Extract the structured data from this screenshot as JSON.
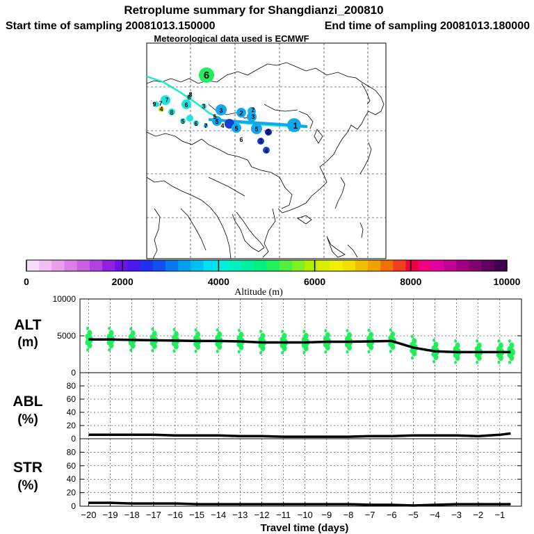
{
  "header": {
    "title": "Retroplume summary for Shangdianzi_200810",
    "start_label": "Start time of sampling 20081013.150000",
    "end_label": "End time of sampling 20081013.180000",
    "met_label": "Meteorological data used is ECMWF"
  },
  "colorbar": {
    "label": "Altitude (m)",
    "ticks": [
      "0",
      "2000",
      "4000",
      "6000",
      "8000",
      "10000"
    ],
    "colors": [
      "#f6dcf6",
      "#f0c0f0",
      "#e8a0ec",
      "#dc80e8",
      "#c860e0",
      "#b040e0",
      "#9020e0",
      "#7010e8",
      "#4818f0",
      "#2030f0",
      "#1050f0",
      "#0878f0",
      "#00a0f0",
      "#00c0f0",
      "#00e0f0",
      "#00f0e0",
      "#00f0c0",
      "#00f0a0",
      "#00f080",
      "#20f060",
      "#50f040",
      "#80f020",
      "#b0f000",
      "#d8f000",
      "#f0f000",
      "#f0e000",
      "#f0c000",
      "#f0a000",
      "#f07000",
      "#f04020",
      "#f00040",
      "#f00080",
      "#e000a0",
      "#c00090",
      "#a00080",
      "#800070",
      "#600060",
      "#400050"
    ]
  },
  "map": {
    "labels": [
      {
        "t": "6",
        "s": 15
      },
      {
        "t": "1",
        "s": 12
      },
      {
        "t": "2",
        "s": 10
      },
      {
        "t": "3",
        "s": 9
      },
      {
        "t": "2",
        "s": 9
      },
      {
        "t": "3",
        "s": 9
      },
      {
        "t": "4",
        "s": 9
      },
      {
        "t": "5",
        "s": 9
      },
      {
        "t": "5",
        "s": 9
      },
      {
        "t": "5",
        "s": 9
      },
      {
        "t": "6",
        "s": 9
      },
      {
        "t": "7",
        "s": 9
      },
      {
        "t": "8",
        "s": 9
      },
      {
        "t": "9",
        "s": 9
      },
      {
        "t": "4",
        "s": 9
      },
      {
        "t": "5",
        "s": 9
      },
      {
        "t": "6",
        "s": 9
      },
      {
        "t": "3",
        "s": 9
      },
      {
        "t": "6",
        "s": 9
      },
      {
        "t": "7",
        "s": 9
      },
      {
        "t": "3",
        "s": 9
      },
      {
        "t": "2",
        "s": 9
      },
      {
        "t": "5",
        "s": 9
      },
      {
        "t": "4",
        "s": 9
      },
      {
        "t": "6",
        "s": 9
      },
      {
        "t": "8",
        "s": 9
      },
      {
        "t": "7",
        "s": 9
      }
    ]
  },
  "chart_data": [
    {
      "type": "scatter+line",
      "panel": "ALT",
      "ylabel_line1": "ALT",
      "ylabel_line2": "(m)",
      "ylim": [
        0,
        10000
      ],
      "ticks": [
        "10000",
        "5000",
        "0"
      ],
      "x": [
        -20,
        -19,
        -18,
        -17,
        -16,
        -15,
        -14,
        -13,
        -12,
        -11,
        -10,
        -9,
        -8,
        -7,
        -6,
        -5,
        -4,
        -3,
        -2,
        -1,
        -0.5
      ],
      "median_altitude_m": [
        4500,
        4500,
        4450,
        4400,
        4350,
        4300,
        4300,
        4250,
        4100,
        4100,
        4100,
        4200,
        4200,
        4250,
        4300,
        3400,
        2900,
        2800,
        2800,
        2800,
        2800
      ],
      "scatter_color": "#20ef5c",
      "line_color": "#000000"
    },
    {
      "type": "line",
      "panel": "ABL",
      "ylabel_line1": "ABL",
      "ylabel_line2": "(%)",
      "ylim": [
        0,
        100
      ],
      "ticks": [
        "80",
        "60",
        "40",
        "20",
        "0"
      ],
      "x": [
        -20,
        -19,
        -18,
        -17,
        -16,
        -15,
        -14,
        -13,
        -12,
        -11,
        -10,
        -9,
        -8,
        -7,
        -6,
        -5,
        -4,
        -3,
        -2,
        -1,
        -0.5
      ],
      "values": [
        6,
        6,
        6,
        6,
        5,
        5,
        5,
        4,
        4,
        3,
        3,
        3,
        3,
        4,
        4,
        5,
        5,
        5,
        4,
        6,
        8
      ]
    },
    {
      "type": "line",
      "panel": "STR",
      "ylabel_line1": "STR",
      "ylabel_line2": "(%)",
      "ylim": [
        0,
        100
      ],
      "ticks": [
        "80",
        "60",
        "40",
        "20",
        "0"
      ],
      "x": [
        -20,
        -19,
        -18,
        -17,
        -16,
        -15,
        -14,
        -13,
        -12,
        -11,
        -10,
        -9,
        -8,
        -7,
        -6,
        -5,
        -4,
        -3,
        -2,
        -1,
        -0.5
      ],
      "values": [
        5,
        5,
        4,
        4,
        4,
        3,
        3,
        3,
        3,
        3,
        3,
        3,
        3,
        2,
        2,
        1,
        2,
        3,
        3,
        3,
        3
      ]
    }
  ],
  "xaxis": {
    "label": "Travel time (days)",
    "ticks": [
      "−20",
      "−19",
      "−18",
      "−17",
      "−16",
      "−15",
      "−14",
      "−13",
      "−12",
      "−11",
      "−10",
      "−9",
      "−8",
      "−7",
      "−6",
      "−5",
      "−4",
      "−3",
      "−2",
      "−1"
    ]
  }
}
